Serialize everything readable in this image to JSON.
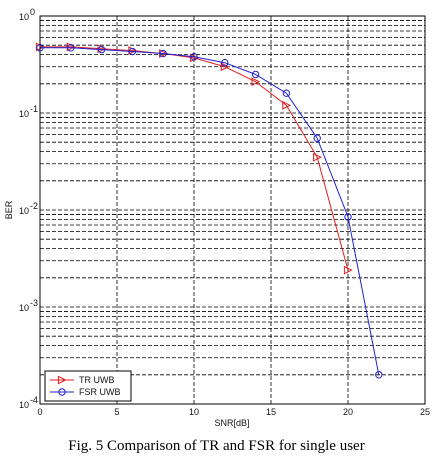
{
  "caption": "Fig. 5 Comparison of TR and FSR for single user",
  "chart_data": {
    "type": "line",
    "title": "",
    "xlabel": "SNR[dB]",
    "ylabel": "BER",
    "xlim": [
      0,
      25
    ],
    "ylim": [
      0.0001,
      1
    ],
    "yscale": "log",
    "grid": true,
    "legend_position": "bottom-left",
    "x_ticks": [
      "0",
      "5",
      "10",
      "15",
      "20",
      "25"
    ],
    "y_ticks": [
      {
        "base": "10",
        "exp": "0"
      },
      {
        "base": "10",
        "exp": "-1"
      },
      {
        "base": "10",
        "exp": "-2"
      },
      {
        "base": "10",
        "exp": "-3"
      },
      {
        "base": "10",
        "exp": "-4"
      }
    ],
    "series": [
      {
        "name": "TR UWB",
        "color": "#e02020",
        "marker": "triangle-right",
        "x": [
          0,
          2,
          4,
          6,
          8,
          10,
          12,
          14,
          16,
          18,
          20
        ],
        "y": [
          0.48,
          0.48,
          0.46,
          0.44,
          0.41,
          0.37,
          0.3,
          0.21,
          0.12,
          0.035,
          0.0024
        ]
      },
      {
        "name": "FSR UWB",
        "color": "#2020d0",
        "marker": "circle",
        "x": [
          0,
          2,
          4,
          6,
          8,
          10,
          12,
          14,
          16,
          18,
          20,
          22
        ],
        "y": [
          0.47,
          0.47,
          0.45,
          0.43,
          0.41,
          0.38,
          0.33,
          0.25,
          0.16,
          0.055,
          0.0085,
          0.0002
        ]
      }
    ]
  }
}
